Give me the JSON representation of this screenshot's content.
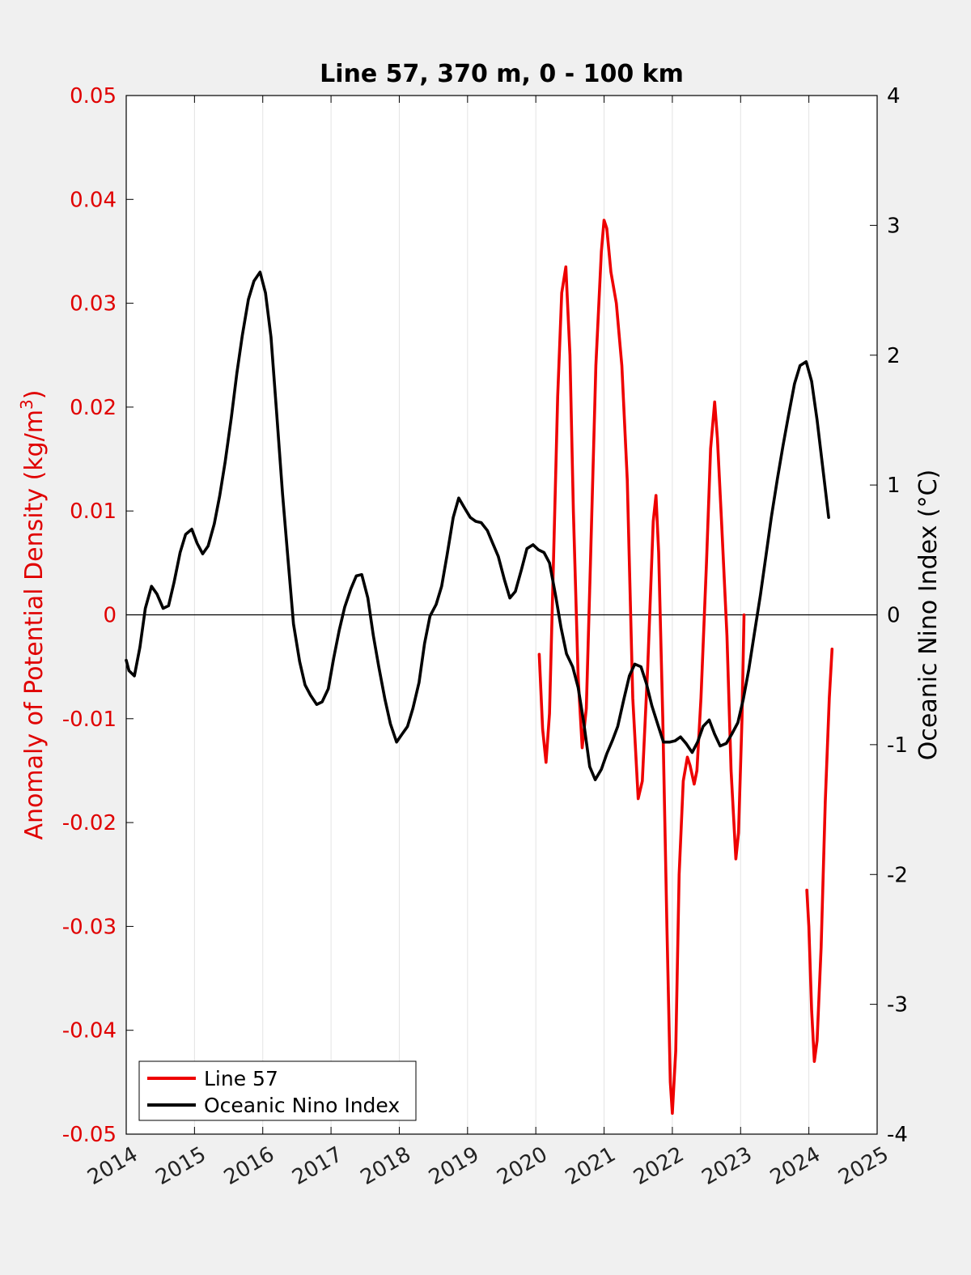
{
  "chart_data": {
    "type": "line",
    "title": "Line 57, 370 m, 0 - 100 km",
    "ylabel_left": "Anomaly of Potential Density (kg/m",
    "ylabel_left_sup": "3",
    "ylabel_left_end": ")",
    "ylabel_right": "Oceanic Nino Index (°C)",
    "xlim": [
      2014,
      2025
    ],
    "ylim_left": [
      -0.05,
      0.05
    ],
    "ylim_right": [
      -4,
      4
    ],
    "x_ticks": [
      "2014",
      "2015",
      "2016",
      "2017",
      "2018",
      "2019",
      "2020",
      "2021",
      "2022",
      "2023",
      "2024",
      "2025"
    ],
    "y_left_ticks": [
      "0.05",
      "0.04",
      "0.03",
      "0.02",
      "0.01",
      "0",
      "-0.01",
      "-0.02",
      "-0.03",
      "-0.04",
      "-0.05"
    ],
    "y_right_ticks": [
      "4",
      "3",
      "2",
      "1",
      "0",
      "-1",
      "-2",
      "-3",
      "-4"
    ],
    "grid": "vertical",
    "legend_position": "bottom-left",
    "colors": {
      "line57": "#ee0000",
      "oni": "#000000"
    },
    "series": [
      {
        "name": "Line 57",
        "axis": "left",
        "segments": [
          [
            [
              2020.05,
              -0.0038
            ],
            [
              2020.1,
              -0.011
            ],
            [
              2020.15,
              -0.0142
            ],
            [
              2020.2,
              -0.0095
            ],
            [
              2020.25,
              0.003
            ],
            [
              2020.32,
              0.021
            ],
            [
              2020.38,
              0.031
            ],
            [
              2020.44,
              0.0335
            ],
            [
              2020.5,
              0.025
            ],
            [
              2020.55,
              0.01
            ],
            [
              2020.62,
              -0.006
            ],
            [
              2020.68,
              -0.0128
            ],
            [
              2020.74,
              -0.009
            ],
            [
              2020.8,
              0.005
            ],
            [
              2020.88,
              0.024
            ],
            [
              2020.96,
              0.035
            ],
            [
              2021.0,
              0.038
            ],
            [
              2021.04,
              0.0372
            ],
            [
              2021.1,
              0.033
            ],
            [
              2021.18,
              0.03
            ],
            [
              2021.26,
              0.024
            ],
            [
              2021.34,
              0.013
            ],
            [
              2021.42,
              -0.008
            ],
            [
              2021.5,
              -0.0177
            ],
            [
              2021.56,
              -0.016
            ],
            [
              2021.64,
              -0.005
            ],
            [
              2021.72,
              0.009
            ],
            [
              2021.76,
              0.0115
            ],
            [
              2021.8,
              0.006
            ],
            [
              2021.86,
              -0.01
            ],
            [
              2021.92,
              -0.03
            ],
            [
              2021.97,
              -0.045
            ],
            [
              2022.0,
              -0.048
            ],
            [
              2022.05,
              -0.042
            ],
            [
              2022.1,
              -0.025
            ],
            [
              2022.16,
              -0.016
            ],
            [
              2022.22,
              -0.0137
            ],
            [
              2022.26,
              -0.0145
            ],
            [
              2022.32,
              -0.0163
            ],
            [
              2022.36,
              -0.015
            ],
            [
              2022.42,
              -0.008
            ],
            [
              2022.5,
              0.005
            ],
            [
              2022.56,
              0.016
            ],
            [
              2022.62,
              0.0205
            ],
            [
              2022.66,
              0.017
            ],
            [
              2022.72,
              0.009
            ],
            [
              2022.8,
              -0.002
            ],
            [
              2022.86,
              -0.015
            ],
            [
              2022.93,
              -0.0235
            ],
            [
              2022.97,
              -0.021
            ],
            [
              2023.02,
              -0.01
            ],
            [
              2023.05,
              0.0
            ]
          ],
          [
            [
              2023.97,
              -0.0265
            ],
            [
              2024.0,
              -0.03
            ],
            [
              2024.04,
              -0.038
            ],
            [
              2024.08,
              -0.043
            ],
            [
              2024.12,
              -0.041
            ],
            [
              2024.18,
              -0.032
            ],
            [
              2024.24,
              -0.018
            ],
            [
              2024.3,
              -0.008
            ],
            [
              2024.34,
              -0.0033
            ]
          ]
        ]
      },
      {
        "name": "Oceanic Nino Index",
        "axis": "right",
        "segments": [
          [
            [
              2014.0,
              -0.35
            ],
            [
              2014.04,
              -0.43
            ],
            [
              2014.12,
              -0.47
            ],
            [
              2014.2,
              -0.25
            ],
            [
              2014.28,
              0.05
            ],
            [
              2014.37,
              0.22
            ],
            [
              2014.45,
              0.16
            ],
            [
              2014.54,
              0.05
            ],
            [
              2014.62,
              0.07
            ],
            [
              2014.7,
              0.25
            ],
            [
              2014.79,
              0.48
            ],
            [
              2014.87,
              0.62
            ],
            [
              2014.96,
              0.66
            ],
            [
              2015.04,
              0.55
            ],
            [
              2015.12,
              0.47
            ],
            [
              2015.2,
              0.53
            ],
            [
              2015.29,
              0.7
            ],
            [
              2015.37,
              0.92
            ],
            [
              2015.45,
              1.18
            ],
            [
              2015.54,
              1.52
            ],
            [
              2015.62,
              1.86
            ],
            [
              2015.7,
              2.15
            ],
            [
              2015.79,
              2.43
            ],
            [
              2015.87,
              2.57
            ],
            [
              2015.96,
              2.64
            ],
            [
              2016.04,
              2.48
            ],
            [
              2016.12,
              2.14
            ],
            [
              2016.2,
              1.58
            ],
            [
              2016.29,
              0.93
            ],
            [
              2016.37,
              0.43
            ],
            [
              2016.45,
              -0.07
            ],
            [
              2016.54,
              -0.36
            ],
            [
              2016.62,
              -0.54
            ],
            [
              2016.7,
              -0.62
            ],
            [
              2016.79,
              -0.69
            ],
            [
              2016.87,
              -0.67
            ],
            [
              2016.96,
              -0.57
            ],
            [
              2017.04,
              -0.33
            ],
            [
              2017.12,
              -0.12
            ],
            [
              2017.2,
              0.06
            ],
            [
              2017.29,
              0.2
            ],
            [
              2017.37,
              0.3
            ],
            [
              2017.45,
              0.31
            ],
            [
              2017.54,
              0.13
            ],
            [
              2017.62,
              -0.16
            ],
            [
              2017.7,
              -0.4
            ],
            [
              2017.79,
              -0.65
            ],
            [
              2017.87,
              -0.84
            ],
            [
              2017.96,
              -0.98
            ],
            [
              2018.04,
              -0.92
            ],
            [
              2018.12,
              -0.86
            ],
            [
              2018.2,
              -0.72
            ],
            [
              2018.29,
              -0.52
            ],
            [
              2018.37,
              -0.22
            ],
            [
              2018.45,
              -0.01
            ],
            [
              2018.54,
              0.08
            ],
            [
              2018.62,
              0.22
            ],
            [
              2018.7,
              0.46
            ],
            [
              2018.79,
              0.75
            ],
            [
              2018.87,
              0.9
            ],
            [
              2018.96,
              0.82
            ],
            [
              2019.04,
              0.75
            ],
            [
              2019.12,
              0.72
            ],
            [
              2019.2,
              0.71
            ],
            [
              2019.29,
              0.65
            ],
            [
              2019.37,
              0.55
            ],
            [
              2019.45,
              0.45
            ],
            [
              2019.54,
              0.27
            ],
            [
              2019.62,
              0.13
            ],
            [
              2019.7,
              0.18
            ],
            [
              2019.79,
              0.35
            ],
            [
              2019.87,
              0.51
            ],
            [
              2019.96,
              0.54
            ],
            [
              2020.04,
              0.5
            ],
            [
              2020.12,
              0.48
            ],
            [
              2020.2,
              0.4
            ],
            [
              2020.29,
              0.15
            ],
            [
              2020.37,
              -0.1
            ],
            [
              2020.45,
              -0.3
            ],
            [
              2020.54,
              -0.4
            ],
            [
              2020.62,
              -0.56
            ],
            [
              2020.7,
              -0.82
            ],
            [
              2020.79,
              -1.17
            ],
            [
              2020.87,
              -1.27
            ],
            [
              2020.96,
              -1.19
            ],
            [
              2021.04,
              -1.07
            ],
            [
              2021.12,
              -0.97
            ],
            [
              2021.2,
              -0.86
            ],
            [
              2021.29,
              -0.65
            ],
            [
              2021.37,
              -0.47
            ],
            [
              2021.45,
              -0.38
            ],
            [
              2021.54,
              -0.4
            ],
            [
              2021.62,
              -0.53
            ],
            [
              2021.7,
              -0.7
            ],
            [
              2021.79,
              -0.85
            ],
            [
              2021.87,
              -0.98
            ],
            [
              2021.96,
              -0.98
            ],
            [
              2022.04,
              -0.97
            ],
            [
              2022.12,
              -0.94
            ],
            [
              2022.2,
              -0.99
            ],
            [
              2022.29,
              -1.06
            ],
            [
              2022.37,
              -0.98
            ],
            [
              2022.45,
              -0.86
            ],
            [
              2022.54,
              -0.81
            ],
            [
              2022.62,
              -0.92
            ],
            [
              2022.7,
              -1.01
            ],
            [
              2022.79,
              -0.99
            ],
            [
              2022.87,
              -0.92
            ],
            [
              2022.96,
              -0.83
            ],
            [
              2023.04,
              -0.65
            ],
            [
              2023.12,
              -0.42
            ],
            [
              2023.2,
              -0.15
            ],
            [
              2023.29,
              0.15
            ],
            [
              2023.37,
              0.45
            ],
            [
              2023.45,
              0.75
            ],
            [
              2023.54,
              1.05
            ],
            [
              2023.62,
              1.3
            ],
            [
              2023.7,
              1.53
            ],
            [
              2023.79,
              1.78
            ],
            [
              2023.87,
              1.92
            ],
            [
              2023.96,
              1.95
            ],
            [
              2024.04,
              1.8
            ],
            [
              2024.12,
              1.5
            ],
            [
              2024.2,
              1.15
            ],
            [
              2024.29,
              0.75
            ]
          ]
        ]
      }
    ]
  }
}
